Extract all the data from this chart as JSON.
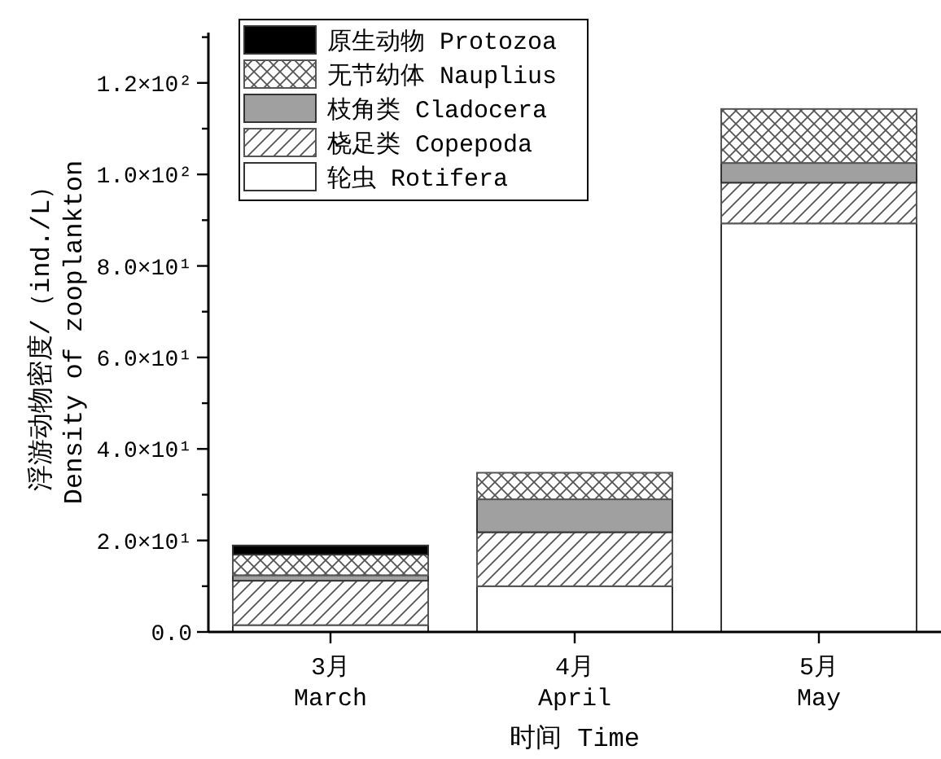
{
  "chart_data": {
    "type": "bar",
    "stacked": true,
    "xlabel": "时间 Time",
    "ylabel": "浮游动物密度/（ind./L）\nDensity of zooplankton",
    "categories": [
      "3月\nMarch",
      "4月\nApril",
      "5月\nMay"
    ],
    "series": [
      {
        "name": "轮虫 Rotifera",
        "color": "#ffffff",
        "values": [
          1.5,
          10.0,
          89.3
        ]
      },
      {
        "name": "桡足类 Copepoda",
        "color": "#555555",
        "values": [
          9.7,
          11.8,
          8.9
        ]
      },
      {
        "name": "枝角类 Cladocera",
        "color": "#a0a0a0",
        "values": [
          1.2,
          7.2,
          4.3
        ]
      },
      {
        "name": "无节幼体 Nauplius",
        "color": "#555555",
        "values": [
          4.5,
          5.8,
          11.8
        ]
      },
      {
        "name": "原生动物 Protozoa",
        "color": "#000000",
        "values": [
          2.0,
          0,
          0
        ]
      }
    ],
    "ylim": [
      0,
      131
    ],
    "yticks": [
      {
        "value": 0,
        "label": "0.0"
      },
      {
        "value": 10,
        "label": null
      },
      {
        "value": 20,
        "label": "2.0×10¹"
      },
      {
        "value": 30,
        "label": null
      },
      {
        "value": 40,
        "label": "4.0×10¹"
      },
      {
        "value": 50,
        "label": null
      },
      {
        "value": 60,
        "label": "6.0×10¹"
      },
      {
        "value": 70,
        "label": null
      },
      {
        "value": 80,
        "label": "8.0×10¹"
      },
      {
        "value": 90,
        "label": null
      },
      {
        "value": 100,
        "label": "1.0×10²"
      },
      {
        "value": 110,
        "label": null
      },
      {
        "value": 120,
        "label": "1.2×10²"
      },
      {
        "value": 130,
        "label": null
      }
    ],
    "legend": "top left"
  }
}
